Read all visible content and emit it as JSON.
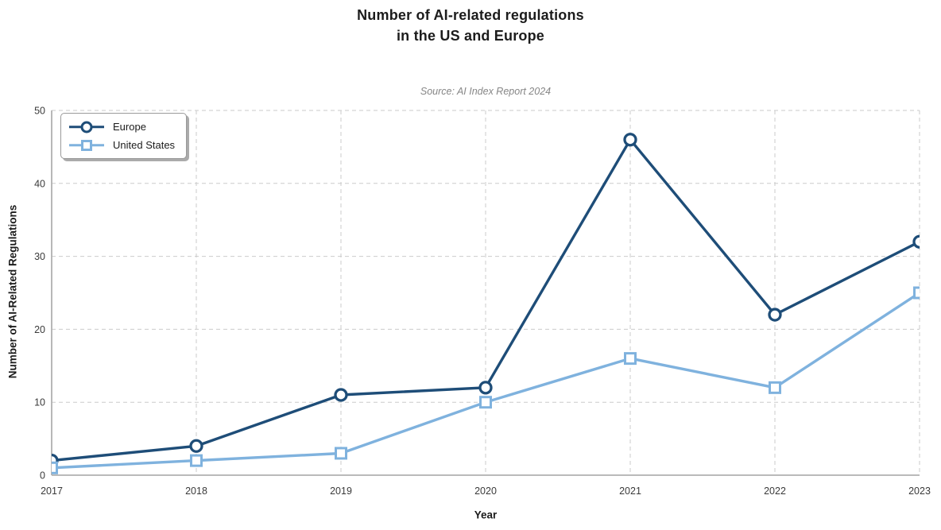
{
  "title": {
    "line1": "Number of AI-related regulations",
    "line2": "in the US and Europe"
  },
  "chart_data": {
    "type": "line",
    "title": "Number of AI-related regulations in the US and Europe",
    "subtitle": "Source: AI Index Report 2024",
    "xlabel": "Year",
    "ylabel": "Number of AI-Related Regulations",
    "categories": [
      "2017",
      "2018",
      "2019",
      "2020",
      "2021",
      "2022",
      "2023"
    ],
    "series": [
      {
        "name": "Europe",
        "values": [
          2,
          4,
          11,
          12,
          46,
          22,
          32
        ],
        "color": "#1e4d78",
        "marker": "circle"
      },
      {
        "name": "United States",
        "values": [
          1,
          2,
          3,
          10,
          16,
          12,
          25
        ],
        "color": "#7fb2de",
        "marker": "square"
      }
    ],
    "ylim": [
      0,
      50
    ],
    "yticks": [
      0,
      10,
      20,
      30,
      40,
      50
    ],
    "grid": "dashed",
    "legend_position": "top-left",
    "colors": {
      "grid": "#cbcbcb",
      "axis": "#b0b0b0",
      "tick_text": "#3a3a3a",
      "title_text": "#1c1c1c",
      "subtitle_text": "#868686"
    }
  }
}
